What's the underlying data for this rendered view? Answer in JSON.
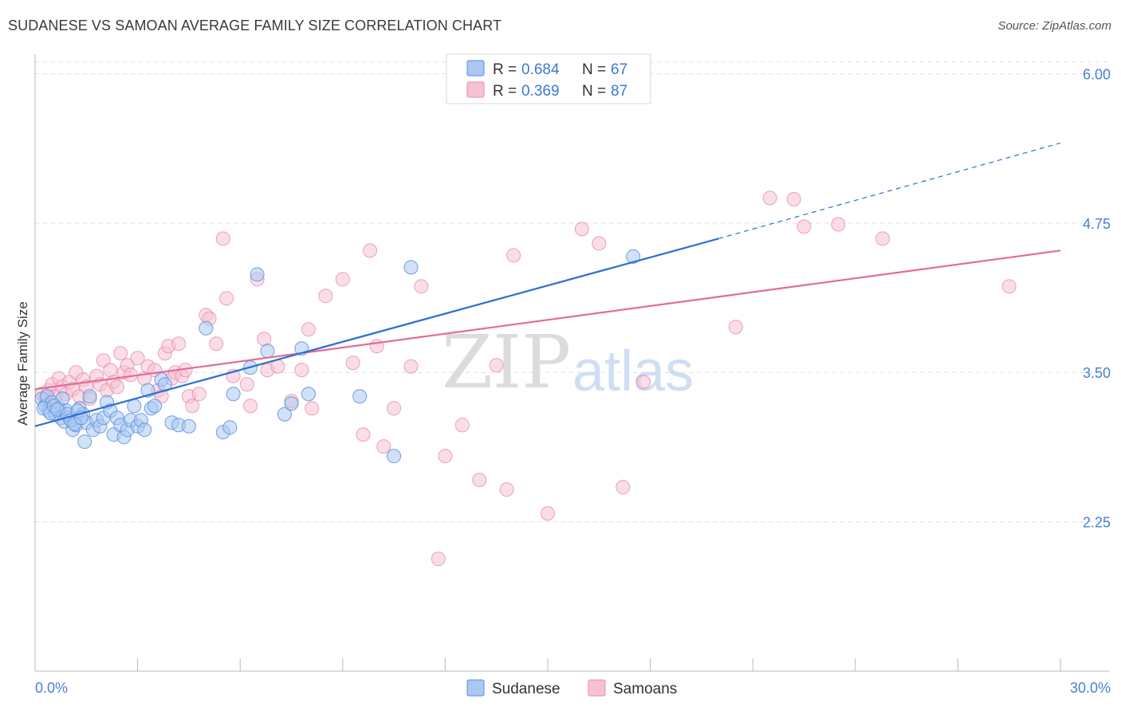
{
  "header": {
    "title": "SUDANESE VS SAMOAN AVERAGE FAMILY SIZE CORRELATION CHART",
    "source": "Source: ZipAtlas.com"
  },
  "colors": {
    "sudanese": "#5b8fdc",
    "sudanese_fill": "#a9c8f2",
    "sudanese_line": "#2c6fd1",
    "samoan": "#e889a8",
    "samoan_fill": "#f6c2d3",
    "samoan_line": "#e46b95",
    "tick_text": "#4a7fd4",
    "grid": "#dedede"
  },
  "legend": {
    "rows": [
      {
        "r_label": "R = ",
        "r_value": "0.684",
        "n_label": "N = ",
        "n_value": "67"
      },
      {
        "r_label": "R = ",
        "r_value": "0.369",
        "n_label": "N = ",
        "n_value": "87"
      }
    ],
    "bottom": [
      "Sudanese",
      "Samoans"
    ]
  },
  "watermark": {
    "zip": "ZIP",
    "atlas": "atlas"
  },
  "chart_data": {
    "type": "scatter",
    "title": "SUDANESE VS SAMOAN AVERAGE FAMILY SIZE CORRELATION CHART",
    "xlabel": "",
    "ylabel": "Average Family Size",
    "xlim": [
      0,
      30
    ],
    "ylim": [
      1.0,
      6.15
    ],
    "x_tick_labels": [
      "0.0%",
      "30.0%"
    ],
    "y_ticks": [
      2.25,
      3.5,
      4.75,
      6.0
    ],
    "y_tick_labels": [
      "2.25",
      "3.50",
      "4.75",
      "6.00"
    ],
    "grid": true,
    "legend_position": "top-center",
    "series": [
      {
        "name": "Sudanese",
        "R": 0.684,
        "N": 67,
        "trend": {
          "x0": 0.0,
          "y0": 3.05,
          "x1": 20.0,
          "y1": 4.62,
          "dashed_to_x": 30.0,
          "dashed_to_y": 5.42
        },
        "points": [
          [
            0.2,
            3.28
          ],
          [
            0.3,
            3.22
          ],
          [
            0.35,
            3.3
          ],
          [
            0.4,
            3.18
          ],
          [
            0.5,
            3.25
          ],
          [
            0.6,
            3.15
          ],
          [
            0.7,
            3.2
          ],
          [
            0.75,
            3.12
          ],
          [
            0.8,
            3.28
          ],
          [
            0.9,
            3.18
          ],
          [
            1.0,
            3.12
          ],
          [
            1.1,
            3.02
          ],
          [
            1.2,
            3.06
          ],
          [
            1.3,
            3.2
          ],
          [
            1.4,
            3.15
          ],
          [
            1.5,
            3.08
          ],
          [
            1.6,
            3.3
          ],
          [
            1.7,
            3.02
          ],
          [
            1.8,
            3.1
          ],
          [
            1.9,
            3.05
          ],
          [
            2.0,
            3.12
          ],
          [
            2.1,
            3.25
          ],
          [
            2.2,
            3.18
          ],
          [
            2.3,
            2.98
          ],
          [
            2.4,
            3.12
          ],
          [
            2.5,
            3.06
          ],
          [
            2.6,
            2.96
          ],
          [
            2.7,
            3.02
          ],
          [
            2.8,
            3.1
          ],
          [
            2.9,
            3.22
          ],
          [
            3.0,
            3.05
          ],
          [
            3.1,
            3.1
          ],
          [
            3.2,
            3.02
          ],
          [
            3.3,
            3.35
          ],
          [
            3.4,
            3.2
          ],
          [
            3.5,
            3.22
          ],
          [
            3.7,
            3.44
          ],
          [
            3.8,
            3.4
          ],
          [
            4.0,
            3.08
          ],
          [
            4.2,
            3.06
          ],
          [
            4.5,
            3.05
          ],
          [
            5.0,
            3.87
          ],
          [
            5.5,
            3.0
          ],
          [
            5.7,
            3.04
          ],
          [
            5.8,
            3.32
          ],
          [
            6.3,
            3.54
          ],
          [
            6.5,
            4.32
          ],
          [
            6.8,
            3.68
          ],
          [
            7.3,
            3.15
          ],
          [
            7.5,
            3.24
          ],
          [
            7.8,
            3.7
          ],
          [
            8.0,
            3.32
          ],
          [
            9.5,
            3.3
          ],
          [
            10.5,
            2.8
          ],
          [
            11.0,
            4.38
          ],
          [
            17.5,
            4.47
          ],
          [
            0.25,
            3.2
          ],
          [
            0.45,
            3.16
          ],
          [
            0.55,
            3.22
          ],
          [
            0.65,
            3.19
          ],
          [
            0.85,
            3.09
          ],
          [
            0.95,
            3.15
          ],
          [
            1.05,
            3.1
          ],
          [
            1.15,
            3.07
          ],
          [
            1.25,
            3.18
          ],
          [
            1.35,
            3.12
          ],
          [
            1.45,
            2.92
          ]
        ]
      },
      {
        "name": "Samoans",
        "R": 0.369,
        "N": 87,
        "trend": {
          "x0": 0.0,
          "y0": 3.36,
          "x1": 30.0,
          "y1": 4.52
        },
        "points": [
          [
            0.2,
            3.32
          ],
          [
            0.3,
            3.28
          ],
          [
            0.4,
            3.35
          ],
          [
            0.5,
            3.4
          ],
          [
            0.6,
            3.3
          ],
          [
            0.7,
            3.45
          ],
          [
            0.8,
            3.38
          ],
          [
            0.9,
            3.32
          ],
          [
            1.0,
            3.42
          ],
          [
            1.1,
            3.36
          ],
          [
            1.2,
            3.5
          ],
          [
            1.3,
            3.3
          ],
          [
            1.4,
            3.44
          ],
          [
            1.5,
            3.38
          ],
          [
            1.6,
            3.28
          ],
          [
            1.8,
            3.47
          ],
          [
            1.9,
            3.4
          ],
          [
            2.0,
            3.6
          ],
          [
            2.1,
            3.35
          ],
          [
            2.2,
            3.52
          ],
          [
            2.3,
            3.42
          ],
          [
            2.4,
            3.38
          ],
          [
            2.5,
            3.66
          ],
          [
            2.6,
            3.5
          ],
          [
            2.7,
            3.56
          ],
          [
            2.8,
            3.48
          ],
          [
            3.0,
            3.62
          ],
          [
            3.2,
            3.45
          ],
          [
            3.3,
            3.55
          ],
          [
            3.5,
            3.52
          ],
          [
            3.6,
            3.35
          ],
          [
            3.7,
            3.3
          ],
          [
            3.8,
            3.66
          ],
          [
            3.9,
            3.72
          ],
          [
            4.0,
            3.45
          ],
          [
            4.1,
            3.5
          ],
          [
            4.2,
            3.74
          ],
          [
            4.3,
            3.47
          ],
          [
            4.4,
            3.52
          ],
          [
            4.5,
            3.3
          ],
          [
            4.6,
            3.22
          ],
          [
            4.8,
            3.32
          ],
          [
            5.0,
            3.98
          ],
          [
            5.1,
            3.95
          ],
          [
            5.3,
            3.74
          ],
          [
            5.5,
            4.62
          ],
          [
            5.6,
            4.12
          ],
          [
            5.8,
            3.47
          ],
          [
            6.2,
            3.4
          ],
          [
            6.3,
            3.22
          ],
          [
            6.5,
            4.28
          ],
          [
            6.7,
            3.78
          ],
          [
            6.8,
            3.52
          ],
          [
            7.1,
            3.55
          ],
          [
            7.5,
            3.26
          ],
          [
            7.8,
            3.52
          ],
          [
            8.0,
            3.86
          ],
          [
            8.1,
            3.2
          ],
          [
            8.5,
            4.14
          ],
          [
            9.0,
            4.28
          ],
          [
            9.3,
            3.58
          ],
          [
            9.6,
            2.98
          ],
          [
            9.8,
            4.52
          ],
          [
            10.0,
            3.72
          ],
          [
            10.2,
            2.88
          ],
          [
            10.5,
            3.2
          ],
          [
            11.0,
            3.55
          ],
          [
            11.3,
            4.22
          ],
          [
            11.8,
            1.94
          ],
          [
            12.0,
            2.8
          ],
          [
            12.5,
            3.06
          ],
          [
            13.0,
            2.6
          ],
          [
            13.5,
            3.56
          ],
          [
            13.8,
            2.52
          ],
          [
            14.0,
            4.48
          ],
          [
            15.0,
            2.32
          ],
          [
            16.0,
            4.7
          ],
          [
            16.5,
            4.58
          ],
          [
            17.2,
            2.54
          ],
          [
            17.8,
            3.42
          ],
          [
            20.5,
            3.88
          ],
          [
            21.5,
            4.96
          ],
          [
            22.2,
            4.95
          ],
          [
            22.5,
            4.72
          ],
          [
            23.5,
            4.74
          ],
          [
            24.8,
            4.62
          ],
          [
            28.5,
            4.22
          ]
        ]
      }
    ]
  }
}
